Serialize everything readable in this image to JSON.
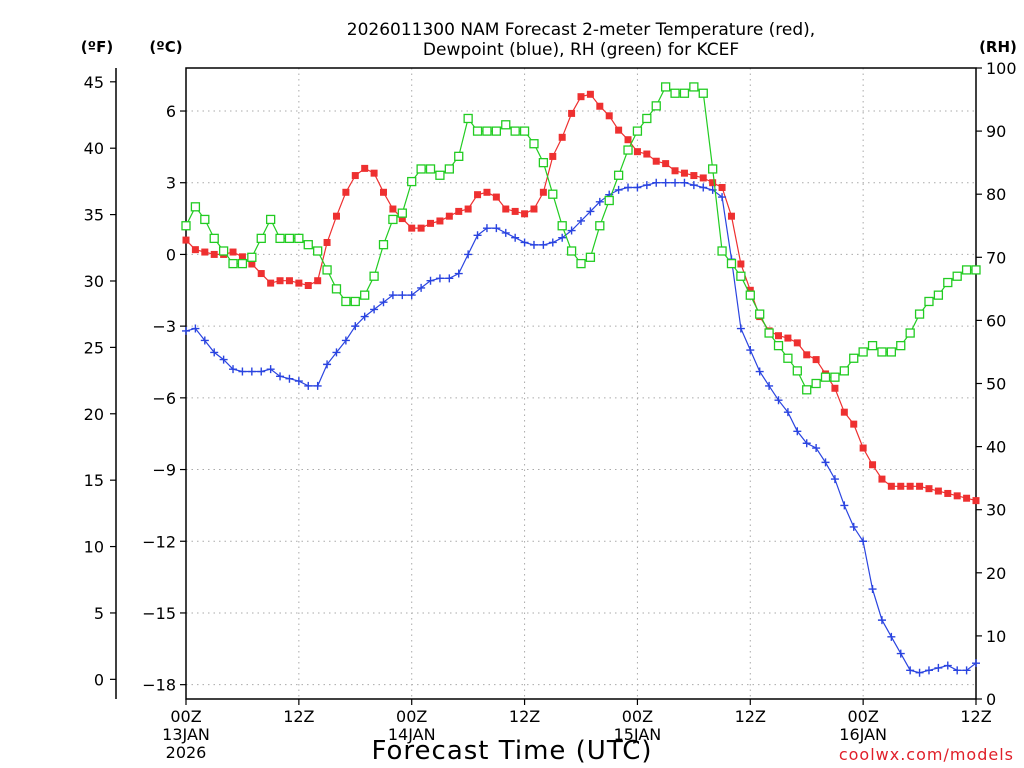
{
  "chart_data": {
    "type": "line",
    "title_line1": "2026011300 NAM Forecast 2-meter Temperature (red),",
    "title_line2": "Dewpoint (blue), RH (green) for KCEF",
    "xlabel": "Forecast Time (UTC)",
    "credit": "coolwx.com/models",
    "unit_f": "(ºF)",
    "unit_c": "(ºC)",
    "unit_rh": "(RH)",
    "xlim_hours": [
      0,
      84
    ],
    "ylim_c": [
      -18.6,
      7.8
    ],
    "ylim_rh": [
      0,
      100
    ],
    "x_ticks": [
      {
        "hour": 0,
        "label": "00Z",
        "sub1": "13JAN",
        "sub2": "2026"
      },
      {
        "hour": 12,
        "label": "12Z",
        "sub1": "",
        "sub2": ""
      },
      {
        "hour": 24,
        "label": "00Z",
        "sub1": "14JAN",
        "sub2": ""
      },
      {
        "hour": 36,
        "label": "12Z",
        "sub1": "",
        "sub2": ""
      },
      {
        "hour": 48,
        "label": "00Z",
        "sub1": "15JAN",
        "sub2": ""
      },
      {
        "hour": 60,
        "label": "12Z",
        "sub1": "",
        "sub2": ""
      },
      {
        "hour": 72,
        "label": "00Z",
        "sub1": "16JAN",
        "sub2": ""
      },
      {
        "hour": 84,
        "label": "12Z",
        "sub1": "",
        "sub2": ""
      }
    ],
    "c_ticks": [
      {
        "value": 6,
        "label": "6"
      },
      {
        "value": 3,
        "label": "3"
      },
      {
        "value": 0,
        "label": "0"
      },
      {
        "value": -3,
        "label": "−3"
      },
      {
        "value": -6,
        "label": "−6"
      },
      {
        "value": -9,
        "label": "−9"
      },
      {
        "value": -12,
        "label": "−12"
      },
      {
        "value": -15,
        "label": "−15"
      },
      {
        "value": -18,
        "label": "−18"
      }
    ],
    "f_ticks": [
      {
        "value": 45,
        "label": "45"
      },
      {
        "value": 40,
        "label": "40"
      },
      {
        "value": 35,
        "label": "35"
      },
      {
        "value": 30,
        "label": "30"
      },
      {
        "value": 25,
        "label": "25"
      },
      {
        "value": 20,
        "label": "20"
      },
      {
        "value": 15,
        "label": "15"
      },
      {
        "value": 10,
        "label": "10"
      },
      {
        "value": 5,
        "label": "5"
      },
      {
        "value": 0,
        "label": "0"
      }
    ],
    "rh_ticks": [
      {
        "value": 100,
        "label": "100"
      },
      {
        "value": 90,
        "label": "90"
      },
      {
        "value": 80,
        "label": "80"
      },
      {
        "value": 70,
        "label": "70"
      },
      {
        "value": 60,
        "label": "60"
      },
      {
        "value": 50,
        "label": "50"
      },
      {
        "value": 40,
        "label": "40"
      },
      {
        "value": 30,
        "label": "30"
      },
      {
        "value": 20,
        "label": "20"
      },
      {
        "value": 10,
        "label": "10"
      },
      {
        "value": 0,
        "label": "0"
      }
    ],
    "series": [
      {
        "name": "Temperature (C)",
        "color": "#ee3030",
        "marker": "filled-square",
        "axis": "celsius",
        "x": [
          0,
          1,
          2,
          3,
          4,
          5,
          6,
          7,
          8,
          9,
          10,
          11,
          12,
          13,
          14,
          15,
          16,
          17,
          18,
          19,
          20,
          21,
          22,
          23,
          24,
          25,
          26,
          27,
          28,
          29,
          30,
          31,
          32,
          33,
          34,
          35,
          36,
          37,
          38,
          39,
          40,
          41,
          42,
          43,
          44,
          45,
          46,
          47,
          48,
          49,
          50,
          51,
          52,
          53,
          54,
          55,
          56,
          57,
          58,
          59,
          60,
          61,
          62,
          63,
          64,
          65,
          66,
          67,
          68,
          69,
          70,
          71,
          72,
          73,
          74,
          75,
          76,
          77,
          78,
          79,
          80,
          81,
          82,
          83,
          84
        ],
        "values": [
          0.6,
          0.2,
          0.1,
          0.0,
          0.0,
          0.1,
          -0.1,
          -0.4,
          -0.8,
          -1.2,
          -1.1,
          -1.1,
          -1.2,
          -1.3,
          -1.1,
          0.5,
          1.6,
          2.6,
          3.3,
          3.6,
          3.4,
          2.6,
          1.9,
          1.5,
          1.1,
          1.1,
          1.3,
          1.4,
          1.6,
          1.8,
          1.9,
          2.5,
          2.6,
          2.4,
          1.9,
          1.8,
          1.7,
          1.9,
          2.6,
          4.1,
          4.9,
          5.9,
          6.6,
          6.7,
          6.2,
          5.8,
          5.2,
          4.8,
          4.3,
          4.2,
          3.9,
          3.8,
          3.5,
          3.4,
          3.3,
          3.2,
          3.0,
          2.8,
          1.6,
          -0.4,
          -1.5,
          -2.6,
          -3.2,
          -3.4,
          -3.5,
          -3.7,
          -4.2,
          -4.4,
          -5.0,
          -5.6,
          -6.6,
          -7.1,
          -8.1,
          -8.8,
          -9.4,
          -9.7,
          -9.7,
          -9.7,
          -9.7,
          -9.8,
          -9.9,
          -10.0,
          -10.1,
          -10.2,
          -10.3
        ]
      },
      {
        "name": "Dewpoint (C)",
        "color": "#2a44e0",
        "marker": "plus",
        "axis": "celsius",
        "x": [
          0,
          1,
          2,
          3,
          4,
          5,
          6,
          7,
          8,
          9,
          10,
          11,
          12,
          13,
          14,
          15,
          16,
          17,
          18,
          19,
          20,
          21,
          22,
          23,
          24,
          25,
          26,
          27,
          28,
          29,
          30,
          31,
          32,
          33,
          34,
          35,
          36,
          37,
          38,
          39,
          40,
          41,
          42,
          43,
          44,
          45,
          46,
          47,
          48,
          49,
          50,
          51,
          52,
          53,
          54,
          55,
          56,
          57,
          58,
          59,
          60,
          61,
          62,
          63,
          64,
          65,
          66,
          67,
          68,
          69,
          70,
          71,
          72,
          73,
          74,
          75,
          76,
          77,
          78,
          79,
          80,
          81,
          82,
          83,
          84
        ],
        "values": [
          -3.2,
          -3.1,
          -3.6,
          -4.1,
          -4.4,
          -4.8,
          -4.9,
          -4.9,
          -4.9,
          -4.8,
          -5.1,
          -5.2,
          -5.3,
          -5.5,
          -5.5,
          -4.6,
          -4.1,
          -3.6,
          -3.0,
          -2.6,
          -2.3,
          -2.0,
          -1.7,
          -1.7,
          -1.7,
          -1.4,
          -1.1,
          -1.0,
          -1.0,
          -0.8,
          0.0,
          0.8,
          1.1,
          1.1,
          0.9,
          0.7,
          0.5,
          0.4,
          0.4,
          0.5,
          0.7,
          1.0,
          1.4,
          1.8,
          2.2,
          2.5,
          2.7,
          2.8,
          2.8,
          2.9,
          3.0,
          3.0,
          3.0,
          3.0,
          2.9,
          2.8,
          2.7,
          2.4,
          -0.2,
          -3.1,
          -4.0,
          -4.9,
          -5.5,
          -6.1,
          -6.6,
          -7.4,
          -7.9,
          -8.1,
          -8.7,
          -9.4,
          -10.5,
          -11.4,
          -12.0,
          -14.0,
          -15.3,
          -16.0,
          -16.7,
          -17.4,
          -17.5,
          -17.4,
          -17.3,
          -17.2,
          -17.4,
          -17.4,
          -17.1
        ]
      },
      {
        "name": "RH (%)",
        "color": "#22cc22",
        "marker": "open-square",
        "axis": "rh",
        "x": [
          0,
          1,
          2,
          3,
          4,
          5,
          6,
          7,
          8,
          9,
          10,
          11,
          12,
          13,
          14,
          15,
          16,
          17,
          18,
          19,
          20,
          21,
          22,
          23,
          24,
          25,
          26,
          27,
          28,
          29,
          30,
          31,
          32,
          33,
          34,
          35,
          36,
          37,
          38,
          39,
          40,
          41,
          42,
          43,
          44,
          45,
          46,
          47,
          48,
          49,
          50,
          51,
          52,
          53,
          54,
          55,
          56,
          57,
          58,
          59,
          60,
          61,
          62,
          63,
          64,
          65,
          66,
          67,
          68,
          69,
          70,
          71,
          72,
          73,
          74,
          75,
          76,
          77,
          78,
          79,
          80,
          81,
          82,
          83,
          84
        ],
        "values": [
          75,
          78,
          76,
          73,
          71,
          69,
          69,
          70,
          73,
          76,
          73,
          73,
          73,
          72,
          71,
          68,
          65,
          63,
          63,
          64,
          67,
          72,
          76,
          77,
          82,
          84,
          84,
          83,
          84,
          86,
          92,
          90,
          90,
          90,
          91,
          90,
          90,
          88,
          85,
          80,
          75,
          71,
          69,
          70,
          75,
          79,
          83,
          87,
          90,
          92,
          94,
          97,
          96,
          96,
          97,
          96,
          84,
          71,
          69,
          67,
          64,
          61,
          58,
          56,
          54,
          52,
          49,
          50,
          51,
          51,
          52,
          54,
          55,
          56,
          55,
          55,
          56,
          58,
          61,
          63,
          64,
          66,
          67,
          68,
          68
        ]
      }
    ]
  }
}
